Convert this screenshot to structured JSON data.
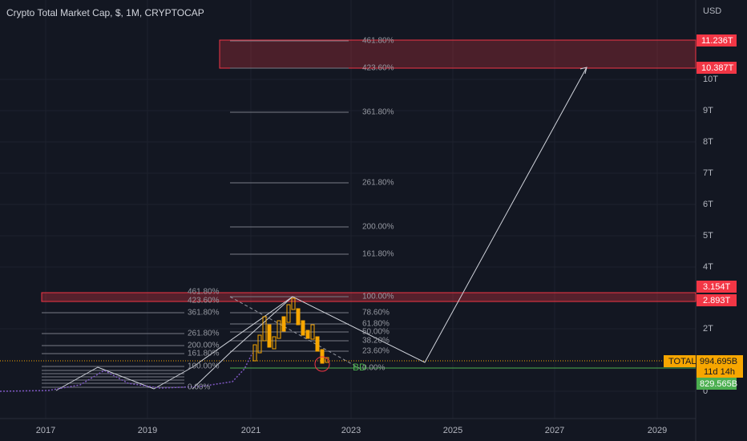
{
  "header": {
    "title": "Crypto Total Market Cap, $, 1M, CRYPTOCAP"
  },
  "price_axis": {
    "currency": "USD",
    "labels": [
      "10T",
      "9T",
      "8T",
      "7T",
      "6T",
      "5T",
      "4T",
      "2T",
      "0"
    ]
  },
  "time_axis": {
    "labels": [
      "2017",
      "2019",
      "2021",
      "2023",
      "2025",
      "2027",
      "2029"
    ]
  },
  "badges": {
    "upper_top": "11.236T",
    "upper_bottom": "10.387T",
    "lower_top": "3.154T",
    "lower_bottom": "2.893T",
    "symbol": "TOTAL",
    "last_price": "994.695B",
    "countdown": "11d 14h",
    "line_price": "829.565B"
  },
  "fib_upper": [
    "461.80%",
    "423.60%",
    "361.80%",
    "261.80%",
    "200.00%",
    "161.80%"
  ],
  "fib_right": [
    "100.00%",
    "78.60%",
    "61.80%",
    "50.00%",
    "38.20%",
    "23.60%",
    "0.00%"
  ],
  "fib_left": [
    "461.80%",
    "423.60%",
    "361.80%",
    "261.80%",
    "200.00%",
    "161.80%",
    "100.00%",
    "0.00%"
  ],
  "annotation": "BD"
}
